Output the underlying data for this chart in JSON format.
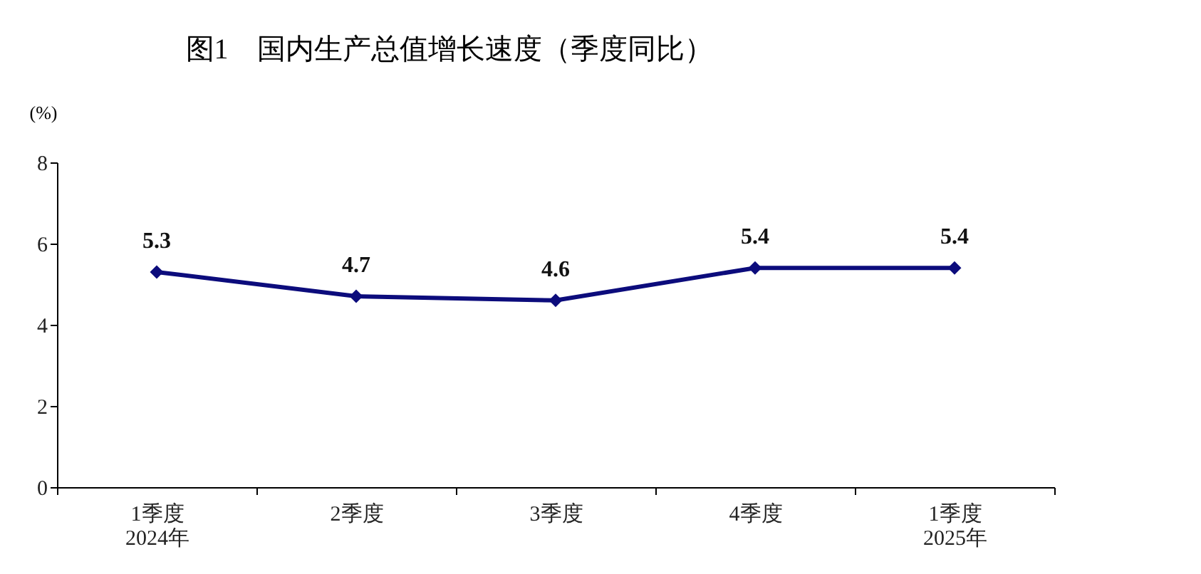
{
  "chart_data": {
    "type": "line",
    "title": "图1　国内生产总值增长速度（季度同比）",
    "ylabel": "(%)",
    "categories": [
      "1季度\n2024年",
      "2季度",
      "3季度",
      "4季度",
      "1季度\n2025年"
    ],
    "series": [
      {
        "color": "#0c0c7c",
        "values": [
          5.3,
          4.7,
          4.6,
          5.4,
          5.4
        ]
      }
    ],
    "ylim": [
      0,
      8
    ],
    "yticks": [
      0,
      2,
      4,
      6,
      8
    ],
    "grid": false,
    "marker": "diamond",
    "line_style": "solid",
    "data_labels": true
  }
}
